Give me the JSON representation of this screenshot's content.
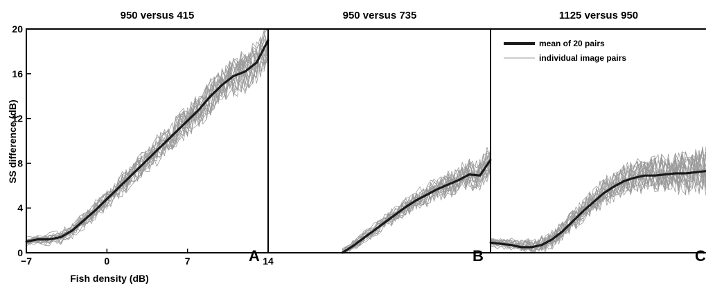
{
  "chart_data": {
    "type": "line",
    "ylabel": "SS difference (dB)",
    "xlabel": "Fish density (dB)",
    "y_range": [
      0,
      20
    ],
    "y_ticks": [
      "0",
      "4",
      "8",
      "12",
      "16",
      "20"
    ],
    "x_range": [
      -7,
      14
    ],
    "x_ticks": [
      {
        "value": -7,
        "label": "−7"
      },
      {
        "value": 0,
        "label": "0"
      },
      {
        "value": 7,
        "label": "7"
      },
      {
        "value": 14,
        "label": "14"
      }
    ],
    "grid": false,
    "legend": {
      "position": "top-left of third panel",
      "entries": [
        "mean of 20 pairs",
        "individual image pairs"
      ]
    },
    "colors": {
      "mean": "#1a1a1a",
      "individual": "#9a9a9a",
      "frame": "#000000"
    },
    "panels": [
      {
        "title": "950 versus 415",
        "letter": "A",
        "mean": {
          "x": [
            -7,
            -6,
            -5,
            -4,
            -3,
            -2,
            -1,
            0,
            1,
            2,
            3,
            4,
            5,
            6,
            7,
            8,
            9,
            10,
            11,
            12,
            13,
            14
          ],
          "y": [
            1.0,
            1.2,
            1.2,
            1.4,
            2.0,
            2.9,
            3.8,
            4.8,
            5.8,
            6.8,
            7.8,
            8.8,
            9.8,
            10.8,
            11.8,
            12.8,
            14.0,
            15.0,
            15.8,
            16.2,
            17.0,
            19.0
          ]
        }
      },
      {
        "title": "950 versus 735",
        "letter": "B",
        "mean": {
          "x": [
            0,
            1,
            2,
            3,
            4,
            5,
            6,
            7,
            8,
            9,
            10,
            11,
            12,
            13,
            14
          ],
          "y": [
            0.0,
            0.6,
            1.3,
            2.0,
            2.7,
            3.4,
            4.1,
            4.7,
            5.2,
            5.7,
            6.1,
            6.5,
            7.0,
            6.9,
            8.3
          ]
        }
      },
      {
        "title": "1125 versus 950",
        "letter": "C",
        "mean": {
          "x": [
            -7,
            -6,
            -5,
            -4,
            -3,
            -2,
            -1,
            0,
            1,
            2,
            3,
            4,
            5,
            6,
            7,
            8,
            9,
            10,
            11,
            12,
            13,
            14
          ],
          "y": [
            0.9,
            0.8,
            0.7,
            0.5,
            0.5,
            0.7,
            1.2,
            1.9,
            2.8,
            3.7,
            4.5,
            5.3,
            5.9,
            6.4,
            6.7,
            6.9,
            6.9,
            7.0,
            7.1,
            7.1,
            7.2,
            7.3
          ]
        }
      }
    ]
  }
}
